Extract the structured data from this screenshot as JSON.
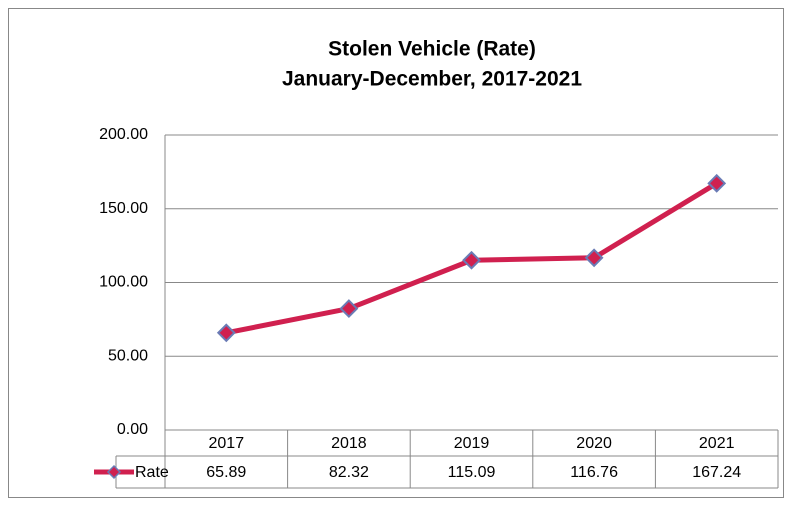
{
  "chart_data": {
    "type": "line",
    "title": "Stolen Vehicle (Rate)",
    "subtitle": "January-December, 2017-2021",
    "categories": [
      "2017",
      "2018",
      "2019",
      "2020",
      "2021"
    ],
    "series": [
      {
        "name": "Rate",
        "color": "#d0204f",
        "marker_edge_color": "#6a7bb5",
        "values": [
          65.89,
          82.32,
          115.09,
          116.76,
          167.24
        ]
      }
    ],
    "ylim": [
      0,
      200
    ],
    "yticks": [
      {
        "value": 0,
        "label": "0.00"
      },
      {
        "value": 50,
        "label": "50.00"
      },
      {
        "value": 100,
        "label": "100.00"
      },
      {
        "value": 150,
        "label": "150.00"
      },
      {
        "value": 200,
        "label": "200.00"
      }
    ],
    "grid": true,
    "data_table": true
  }
}
